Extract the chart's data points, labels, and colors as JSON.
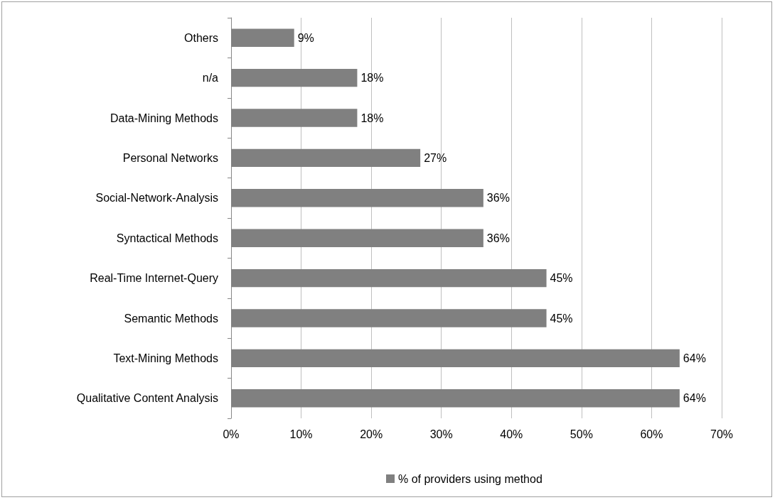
{
  "chart_data": {
    "type": "bar",
    "orientation": "horizontal",
    "categories": [
      "Others",
      "n/a",
      "Data-Mining Methods",
      "Personal Networks",
      "Social-Network-Analysis",
      "Syntactical Methods",
      "Real-Time Internet-Query",
      "Semantic Methods",
      "Text-Mining Methods",
      "Qualitative Content Analysis"
    ],
    "series": [
      {
        "name": "% of providers using method",
        "color": "#808080",
        "values": [
          9,
          18,
          18,
          27,
          36,
          36,
          45,
          45,
          64,
          64
        ],
        "value_labels": [
          "9%",
          "18%",
          "18%",
          "27%",
          "36%",
          "36%",
          "45%",
          "45%",
          "64%",
          "64%"
        ]
      }
    ],
    "xlim": [
      0,
      70
    ],
    "xticks": [
      {
        "value": 0,
        "label": "0%"
      },
      {
        "value": 10,
        "label": "10%"
      },
      {
        "value": 20,
        "label": "20%"
      },
      {
        "value": 30,
        "label": "30%"
      },
      {
        "value": 40,
        "label": "40%"
      },
      {
        "value": 50,
        "label": "50%"
      },
      {
        "value": 60,
        "label": "60%"
      },
      {
        "value": 70,
        "label": "70%"
      }
    ],
    "grid": "x",
    "legend": "bottom"
  }
}
